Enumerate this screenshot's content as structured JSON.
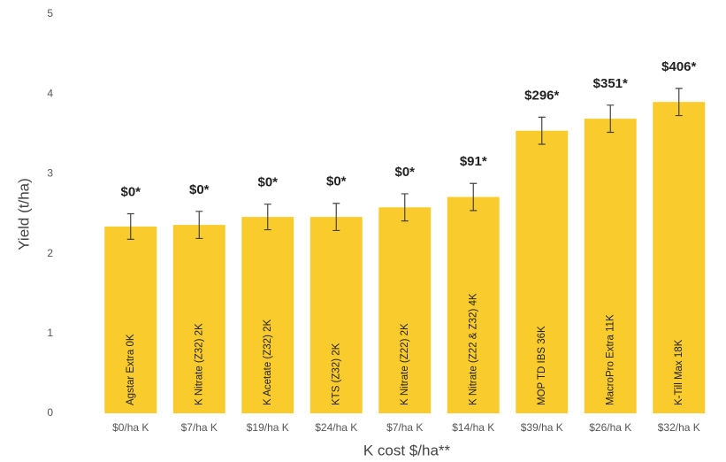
{
  "chart_data": {
    "type": "bar",
    "y_label": "Yield (t/ha)",
    "x_label": "K cost $/ha**",
    "categories": [
      "$0/ha K",
      "$7/ha K",
      "$19/ha K",
      "$24/ha K",
      "$7/ha K",
      "$14/ha K",
      "$39/ha K",
      "$26/ha K",
      "$32/ha K"
    ],
    "bar_labels": [
      "Agstar Extra 0K",
      "K Nitrate (Z32) 2K",
      "K Acetate (Z32) 2K",
      "KTS (Z32) 2K",
      "K Nitrate (Z22) 2K",
      "K Nitrate (Z22 & Z32) 4K",
      "MOP TD IBS 36K",
      "MacroPro Extra 11K",
      "K-Till Max 18K"
    ],
    "annotations": [
      "$0*",
      "$0*",
      "$0*",
      "$0*",
      "$0*",
      "$91*",
      "$296*",
      "$351*",
      "$406*"
    ],
    "values": [
      2.34,
      2.36,
      2.46,
      2.46,
      2.58,
      2.71,
      3.54,
      3.69,
      3.9
    ],
    "errors": [
      0.16,
      0.17,
      0.16,
      0.17,
      0.17,
      0.17,
      0.17,
      0.17,
      0.17
    ],
    "color": "#f9cb2d",
    "ylim": [
      0,
      5
    ],
    "yticks": [
      0,
      1,
      2,
      3,
      4,
      5
    ],
    "grid": false
  }
}
